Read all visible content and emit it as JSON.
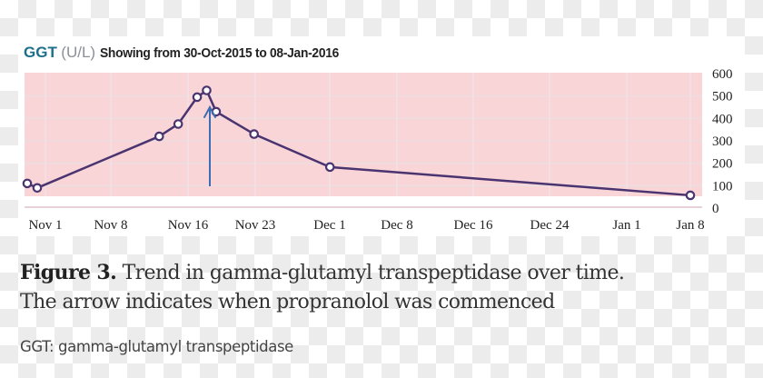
{
  "chart_title": {
    "metric": "GGT",
    "unit": "(U/L)",
    "range_text": "Showing from 30-Oct-2015 to 08-Jan-2016"
  },
  "caption": {
    "figure_label": "Figure 3.",
    "line1": " Trend in gamma-glutamyl transpeptidase over time.",
    "line2": "The arrow indicates when propranolol was commenced"
  },
  "abbreviation": "GGT: gamma-glutamyl transpeptidase",
  "colors": {
    "plot_band": "#f9d5d8",
    "line": "#4a3470",
    "marker_fill": "#ffffff",
    "arrow": "#3d6db0",
    "metric_title": "#1e6f8c"
  },
  "chart_data": {
    "type": "line",
    "title": "GGT (U/L) Showing from 30-Oct-2015 to 08-Jan-2016",
    "xlabel": "",
    "ylabel": "GGT (U/L)",
    "ylim": [
      0,
      600
    ],
    "yticks": [
      0,
      100,
      200,
      300,
      400,
      500,
      600
    ],
    "xticks": [
      "Nov 1",
      "Nov 8",
      "Nov 16",
      "Nov 23",
      "Dec 1",
      "Dec 8",
      "Dec 16",
      "Dec 24",
      "Jan 1",
      "Jan 8"
    ],
    "grid": true,
    "legend": null,
    "y_axis_position": "right",
    "series": [
      {
        "name": "GGT",
        "x": [
          "2015-10-30",
          "2015-10-31",
          "2015-11-13",
          "2015-11-15",
          "2015-11-17",
          "2015-11-18",
          "2015-11-19",
          "2015-11-23",
          "2015-12-01",
          "2016-01-08"
        ],
        "values": [
          110,
          90,
          320,
          375,
          495,
          525,
          430,
          330,
          183,
          57
        ]
      }
    ],
    "annotations": [
      {
        "type": "arrow",
        "x": "2015-11-18",
        "note": "Propranolol commenced"
      }
    ]
  }
}
